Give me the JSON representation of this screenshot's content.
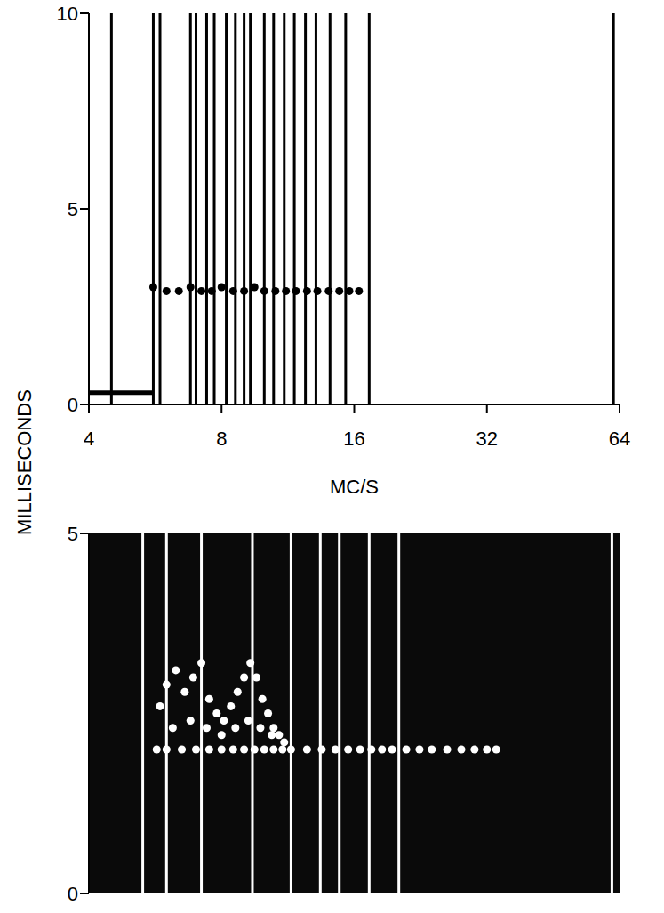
{
  "chart_data": [
    {
      "type": "scatter",
      "ylabel": "MILLISECONDS",
      "xlabel": "MC/S",
      "log": "x",
      "xlim": [
        4,
        64
      ],
      "xticks": [
        4,
        8,
        16,
        32,
        64
      ],
      "ylim": [
        0,
        10
      ],
      "yticks": [
        0,
        5,
        10
      ],
      "grid": false,
      "color": "#000000",
      "vlines": [
        4.5,
        5.6,
        5.8,
        6.8,
        7.0,
        7.4,
        7.7,
        8.2,
        8.6,
        9.0,
        9.3,
        10.0,
        10.5,
        11.1,
        11.7,
        12.4,
        13.1,
        14.1,
        15.3,
        17.3,
        62.0
      ],
      "series": [
        {
          "type": "line",
          "color": "#000000",
          "x": [
            4,
            5.6
          ],
          "values": [
            0.3,
            0.3
          ]
        },
        {
          "type": "scatter",
          "marker": "circle",
          "color": "#000000",
          "x": [
            5.6,
            6.0,
            6.4,
            6.8,
            7.2,
            7.6,
            8.0,
            8.5,
            9.0,
            9.5,
            10.0,
            10.6,
            11.2,
            11.8,
            12.5,
            13.2,
            14.0,
            14.8,
            15.6,
            16.4
          ],
          "values": [
            3.0,
            2.9,
            2.9,
            3.0,
            2.9,
            2.9,
            3.0,
            2.9,
            2.9,
            3.0,
            2.9,
            2.9,
            2.9,
            2.9,
            2.9,
            2.9,
            2.9,
            2.9,
            2.9,
            2.9
          ]
        }
      ]
    },
    {
      "type": "scatter",
      "log": "x",
      "tick_labels": "y",
      "xlim": [
        4,
        64
      ],
      "ylim": [
        0,
        5
      ],
      "yticks": [
        0,
        5
      ],
      "grid": false,
      "color": "#ffffff",
      "vlines": [
        5.3,
        6.0,
        7.2,
        9.4,
        11.5,
        13.4,
        14.8,
        17.3,
        20.2,
        61.5
      ],
      "series": [
        {
          "type": "scatter",
          "marker": "circle",
          "color": "#ffffff",
          "x": [
            5.7,
            6.0,
            6.5,
            7.0,
            7.5,
            8.0,
            8.5,
            9.0,
            9.5,
            10.0,
            10.5,
            11.0,
            11.5,
            12.5,
            13.5,
            14.5,
            15.5,
            16.5,
            17.5,
            18.5,
            19.5,
            21.0,
            22.5,
            24.0,
            26.0,
            28.0,
            30.0,
            32.0,
            33.6
          ],
          "values": [
            2.0,
            2.0,
            2.0,
            2.0,
            2.0,
            2.0,
            2.0,
            2.0,
            2.0,
            2.0,
            2.0,
            2.0,
            2.0,
            2.0,
            2.0,
            2.0,
            2.0,
            2.0,
            2.0,
            2.0,
            2.0,
            2.0,
            2.0,
            2.0,
            2.0,
            2.0,
            2.0,
            2.0,
            2.0
          ]
        },
        {
          "type": "scatter",
          "marker": "circle",
          "color": "#ffffff",
          "x": [
            5.8,
            6.0,
            6.3,
            6.6,
            6.9,
            7.2,
            7.5,
            7.8,
            8.1,
            8.4,
            8.7,
            9.0,
            9.3,
            9.6,
            9.9,
            10.2,
            10.5,
            10.8,
            11.1,
            6.2,
            6.8,
            7.4,
            8.0,
            8.6,
            9.2,
            9.8,
            10.4
          ],
          "values": [
            2.6,
            2.9,
            3.1,
            2.8,
            3.0,
            3.2,
            2.7,
            2.5,
            2.4,
            2.6,
            2.8,
            3.0,
            3.2,
            3.0,
            2.7,
            2.5,
            2.3,
            2.2,
            2.1,
            2.3,
            2.4,
            2.3,
            2.2,
            2.3,
            2.4,
            2.3,
            2.2
          ]
        }
      ]
    }
  ]
}
